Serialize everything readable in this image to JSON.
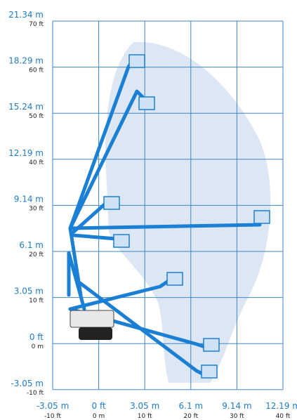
{
  "y_axis": [
    {
      "upper": "21.34 m",
      "lower": "70 ft"
    },
    {
      "upper": "18.29 m",
      "lower": "60 ft"
    },
    {
      "upper": "15.24 m",
      "lower": "50 ft"
    },
    {
      "upper": "12.19 m",
      "lower": "40 ft"
    },
    {
      "upper": "9.14 m",
      "lower": "30 ft"
    },
    {
      "upper": "6.1 m",
      "lower": "20 ft"
    },
    {
      "upper": "3.05 m",
      "lower": "10 ft"
    },
    {
      "upper": "0 ft",
      "lower": "0 m"
    },
    {
      "upper": "-3.05 m",
      "lower": "-10 ft"
    }
  ],
  "x_axis": [
    {
      "upper": "-3.05 m",
      "lower": "-10 ft"
    },
    {
      "upper": "0 ft",
      "lower": "0 m"
    },
    {
      "upper": "3.05 m",
      "lower": "10 ft"
    },
    {
      "upper": "6.1 m",
      "lower": "20 ft"
    },
    {
      "upper": "9.14 m",
      "lower": "30 ft"
    },
    {
      "upper": "12.19 m",
      "lower": "40 ft"
    }
  ]
}
